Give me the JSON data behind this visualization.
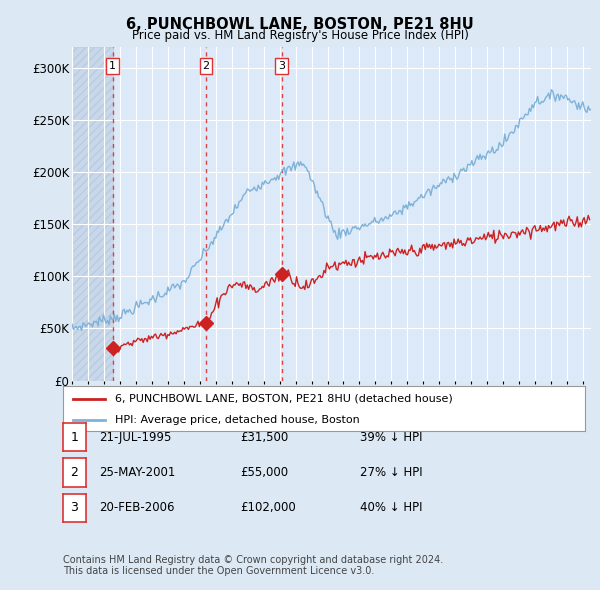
{
  "title": "6, PUNCHBOWL LANE, BOSTON, PE21 8HU",
  "subtitle": "Price paid vs. HM Land Registry's House Price Index (HPI)",
  "xlim_start": 1993.0,
  "xlim_end": 2025.5,
  "ylim": [
    0,
    320000
  ],
  "yticks": [
    0,
    50000,
    100000,
    150000,
    200000,
    250000,
    300000
  ],
  "ytick_labels": [
    "£0",
    "£50K",
    "£100K",
    "£150K",
    "£200K",
    "£250K",
    "£300K"
  ],
  "sales": [
    {
      "date_num": 1995.55,
      "price": 31500,
      "label": "1"
    },
    {
      "date_num": 2001.4,
      "price": 55000,
      "label": "2"
    },
    {
      "date_num": 2006.13,
      "price": 102000,
      "label": "3"
    }
  ],
  "legend_line1": "6, PUNCHBOWL LANE, BOSTON, PE21 8HU (detached house)",
  "legend_line2": "HPI: Average price, detached house, Boston",
  "table_rows": [
    {
      "num": "1",
      "date": "21-JUL-1995",
      "price": "£31,500",
      "pct": "39% ↓ HPI"
    },
    {
      "num": "2",
      "date": "25-MAY-2001",
      "price": "£55,000",
      "pct": "27% ↓ HPI"
    },
    {
      "num": "3",
      "date": "20-FEB-2006",
      "price": "£102,000",
      "pct": "40% ↓ HPI"
    }
  ],
  "footnote1": "Contains HM Land Registry data © Crown copyright and database right 2024.",
  "footnote2": "This data is licensed under the Open Government Licence v3.0.",
  "bg_color": "#dce9f5",
  "plot_bg_color": "#dce9f8",
  "hpi_color": "#7fb2d8",
  "sale_color": "#cc2222",
  "vline_color": "#dd3333",
  "hatch_region_end": 1995.55
}
